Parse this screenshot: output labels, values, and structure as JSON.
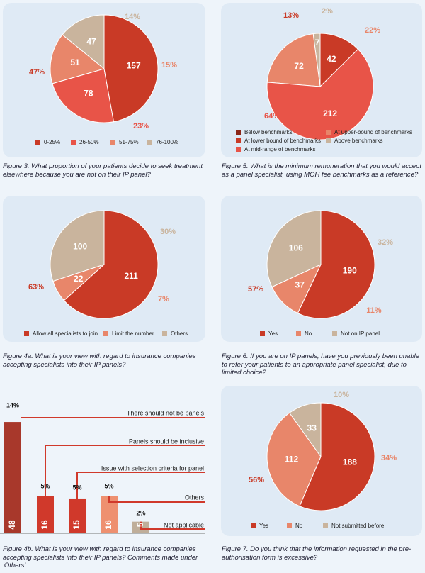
{
  "colors": {
    "panel_bg": "#dfeaf5",
    "red": "#c93a26",
    "coral": "#e85448",
    "salmon": "#e8866a",
    "beige": "#c9b49d",
    "dark_red": "#8b2618",
    "bar_dark": "#a8382b",
    "bar_red": "#d0392b",
    "bar_pale": "#ee9070",
    "bar_grey": "#bfae9a",
    "line_red": "#d0392b"
  },
  "chart_data": [
    {
      "id": "fig3",
      "type": "pie",
      "caption": "Figure 3. What proportion of your patients decide to seek treatment elsewhere because you are not on their IP panel?",
      "slices": [
        {
          "label": "0-25%",
          "value": 157,
          "pct": "47%"
        },
        {
          "label": "26-50%",
          "value": 78,
          "pct": "23%"
        },
        {
          "label": "51-75%",
          "value": 51,
          "pct": "15%"
        },
        {
          "label": "76-100%",
          "value": 47,
          "pct": "14%"
        }
      ]
    },
    {
      "id": "fig5",
      "type": "pie",
      "caption": "Figure 5. What is the minimum remuneration that you would accept as a panel specialist, using MOH fee benchmarks as a reference?",
      "slices": [
        {
          "label": "Below benchmarks",
          "value": 0,
          "pct": ""
        },
        {
          "label": "At lower bound of benchmarks",
          "value": 42,
          "pct": "13%"
        },
        {
          "label": "At mid-range of benchmarks",
          "value": 212,
          "pct": "64%"
        },
        {
          "label": "At upper-bound of benchmarks",
          "value": 72,
          "pct": "22%"
        },
        {
          "label": "Above benchmarks",
          "value": 7,
          "pct": "2%"
        }
      ]
    },
    {
      "id": "fig4a",
      "type": "pie",
      "caption": "Figure 4a. What is your view with regard to insurance companies accepting specialists into their IP panels?",
      "slices": [
        {
          "label": "Allow all specialists to join",
          "value": 211,
          "pct": "63%"
        },
        {
          "label": "Limit the number",
          "value": 22,
          "pct": "7%"
        },
        {
          "label": "Others",
          "value": 100,
          "pct": "30%"
        }
      ]
    },
    {
      "id": "fig6",
      "type": "pie",
      "caption": "Figure 6. If you are on IP panels, have you previously been unable to refer your patients to an appropriate panel specialist, due to limited choice?",
      "slices": [
        {
          "label": "Yes",
          "value": 190,
          "pct": "57%"
        },
        {
          "label": "No",
          "value": 37,
          "pct": "11%"
        },
        {
          "label": "Not on IP panel",
          "value": 106,
          "pct": "32%"
        }
      ]
    },
    {
      "id": "fig4b",
      "type": "bar",
      "caption": "Figure 4b. What is your view with regard to insurance companies accepting specialists into their IP panels? Comments made under 'Others'",
      "categories": [
        "There should not be panels",
        "Panels should be inclusive",
        "Issue with selection criteria for panel",
        "Others",
        "Not applicable"
      ],
      "values": [
        48,
        16,
        15,
        16,
        5
      ],
      "pct": [
        "14%",
        "5%",
        "5%",
        "5%",
        "2%"
      ],
      "ylim": [
        0,
        52
      ]
    },
    {
      "id": "fig7",
      "type": "pie",
      "caption": "Figure 7. Do you think that the information requested in the pre-authorisation form is excessive?",
      "slices": [
        {
          "label": "Yes",
          "value": 188,
          "pct": "56%"
        },
        {
          "label": "No",
          "value": 112,
          "pct": "34%"
        },
        {
          "label": "Not submitted before",
          "value": 33,
          "pct": "10%"
        }
      ]
    }
  ]
}
